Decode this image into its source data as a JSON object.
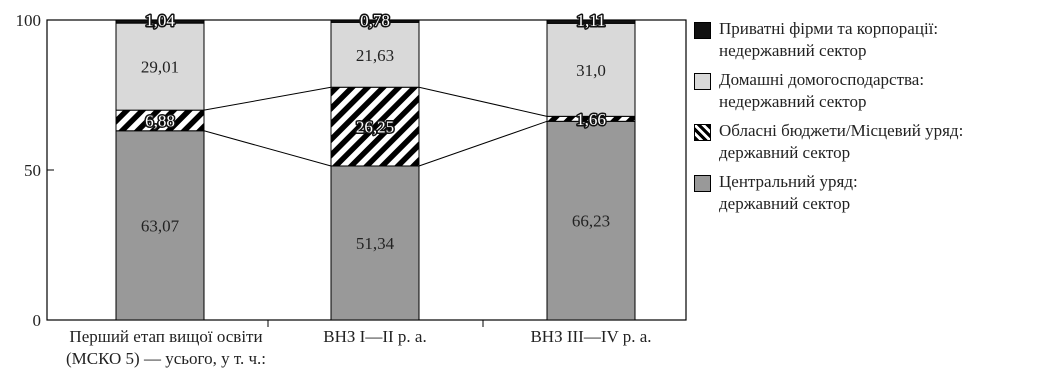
{
  "chart_data": {
    "type": "bar",
    "stacked": true,
    "categories": [
      [
        "Перший етап вищої  освіти",
        "(МСКО 5) — усього, у т. ч.:"
      ],
      [
        "ВНЗ I—II р. а."
      ],
      [
        "ВНЗ III—IV р. а."
      ]
    ],
    "series": [
      {
        "name": [
          "Центральний уряд:",
          "державний сектор"
        ],
        "values": [
          63.07,
          51.34,
          66.23
        ],
        "labels": [
          "63,07",
          "51,34",
          "66,23"
        ],
        "color": "#999999",
        "pattern": "solid"
      },
      {
        "name": [
          "Обласні бюджети/Місцевий уряд:",
          "державний сектор"
        ],
        "values": [
          6.88,
          26.25,
          1.66
        ],
        "labels": [
          "6,88",
          "26,25",
          "1,66"
        ],
        "color": "#000000",
        "pattern": "hatch"
      },
      {
        "name": [
          "Домашні домогосподарства:",
          "недержавний сектор"
        ],
        "values": [
          29.01,
          21.63,
          31.0
        ],
        "labels": [
          "29,01",
          "21,63",
          "31,0"
        ],
        "color": "#d9d9d9",
        "pattern": "solid"
      },
      {
        "name": [
          "Приватні фірми та корпорації:",
          "недержавний сектор"
        ],
        "values": [
          1.04,
          0.78,
          1.11
        ],
        "labels": [
          "1,04",
          "0,78",
          "1,11"
        ],
        "color": "#111111",
        "pattern": "solid"
      }
    ],
    "ylim": [
      0,
      100
    ],
    "yticks": [
      0,
      50,
      100
    ],
    "ytick_labels": [
      "0",
      "50",
      "100"
    ],
    "legend_position": "right",
    "grid": false,
    "connector_lines": true
  }
}
